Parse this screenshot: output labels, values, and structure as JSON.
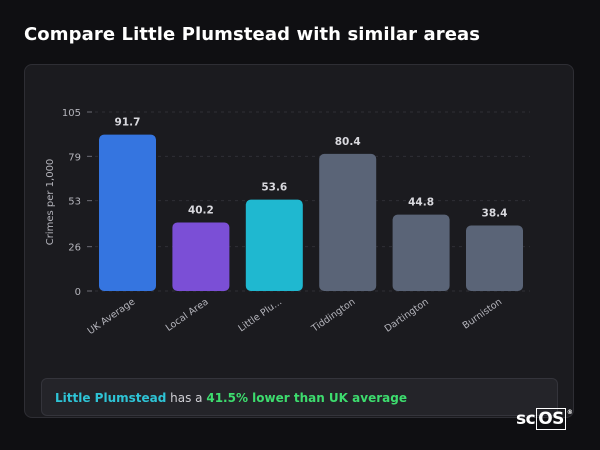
{
  "title": "Compare Little Plumstead with similar areas",
  "chart_data": {
    "type": "bar",
    "ylabel": "Crimes per 1,000",
    "ylim": [
      0,
      105
    ],
    "yticks": [
      0,
      26,
      53,
      79,
      105
    ],
    "gridlines": "dashed",
    "categories": [
      "UK Average",
      "Local Area",
      "Little Plu...",
      "Tiddington",
      "Dartington",
      "Burniston"
    ],
    "values": [
      91.7,
      40.2,
      53.6,
      80.4,
      44.8,
      38.4
    ],
    "value_labels": [
      "91.7",
      "40.2",
      "53.6",
      "80.4",
      "44.8",
      "38.4"
    ],
    "colors": [
      "#3575e0",
      "#7b4fd6",
      "#1fb8d0",
      "#5a6477",
      "#5a6477",
      "#5a6477"
    ]
  },
  "summary": {
    "area": "Little Plumstead",
    "text": " has a ",
    "stat": "41.5% lower than UK average"
  },
  "brand": {
    "prefix": "sc",
    "highlight": "OS",
    "mark": "®"
  }
}
